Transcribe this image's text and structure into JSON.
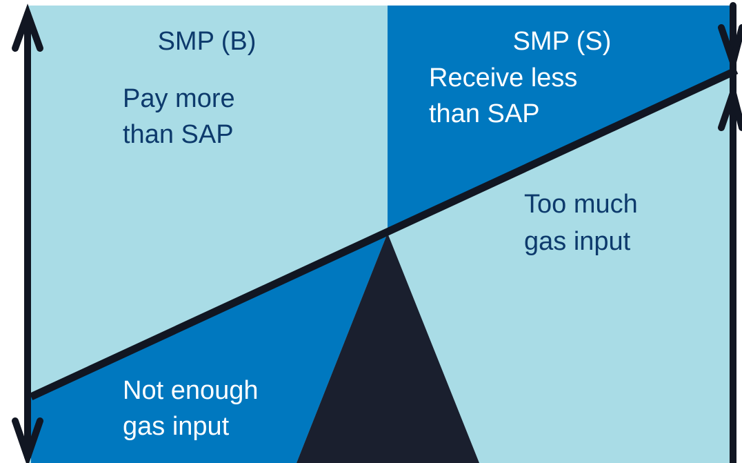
{
  "labels": {
    "smp_b": "SMP (B)",
    "pay_more": [
      "Pay more",
      "than SAP"
    ],
    "smp_s": "SMP (S)",
    "receive_less": [
      "Receive less",
      "than SAP"
    ],
    "too_much": [
      "Too much",
      "gas input"
    ],
    "not_enough": [
      "Not enough",
      "gas input"
    ]
  }
}
